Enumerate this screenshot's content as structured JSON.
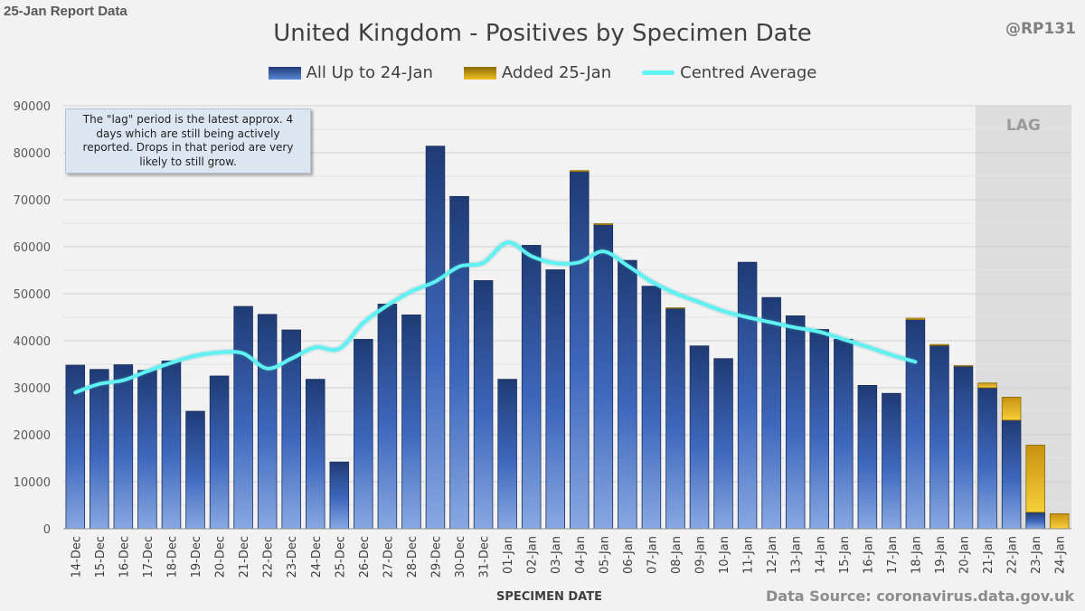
{
  "header": {
    "report_label": "25-Jan Report Data",
    "author_handle": "@RP131"
  },
  "chart_data": {
    "type": "bar",
    "title": "United Kingdom - Positives by Specimen Date",
    "xlabel": "SPECIMEN DATE",
    "ylabel": "",
    "ylim": [
      0,
      90000
    ],
    "yticks": [
      0,
      10000,
      20000,
      30000,
      40000,
      50000,
      60000,
      70000,
      80000,
      90000
    ],
    "stacked": true,
    "grid": true,
    "legend_position": "top",
    "categories": [
      "14-Dec",
      "15-Dec",
      "16-Dec",
      "17-Dec",
      "18-Dec",
      "19-Dec",
      "20-Dec",
      "21-Dec",
      "22-Dec",
      "23-Dec",
      "24-Dec",
      "25-Dec",
      "26-Dec",
      "27-Dec",
      "28-Dec",
      "29-Dec",
      "30-Dec",
      "31-Dec",
      "01-Jan",
      "02-Jan",
      "03-Jan",
      "04-Jan",
      "05-Jan",
      "06-Jan",
      "07-Jan",
      "08-Jan",
      "09-Jan",
      "10-Jan",
      "11-Jan",
      "12-Jan",
      "13-Jan",
      "14-Jan",
      "15-Jan",
      "16-Jan",
      "17-Jan",
      "18-Jan",
      "19-Jan",
      "20-Jan",
      "21-Jan",
      "22-Jan",
      "23-Jan",
      "24-Jan"
    ],
    "series": [
      {
        "name": "All Up to 24-Jan",
        "kind": "bar",
        "color": "#2f55a4",
        "values": [
          34800,
          33900,
          34900,
          33700,
          35700,
          25000,
          32500,
          47300,
          45600,
          42300,
          31800,
          14200,
          40300,
          47800,
          45500,
          81400,
          70700,
          52800,
          31800,
          60300,
          55100,
          76000,
          64700,
          57100,
          51600,
          46900,
          38900,
          36200,
          56700,
          49200,
          45300,
          42400,
          40300,
          30500,
          28800,
          44500,
          39000,
          34600,
          30000,
          23100,
          3500,
          0
        ]
      },
      {
        "name": "Added 25-Jan",
        "kind": "bar",
        "color": "#d9a520",
        "values": [
          0,
          0,
          0,
          0,
          0,
          0,
          0,
          0,
          0,
          0,
          0,
          0,
          0,
          0,
          0,
          0,
          0,
          0,
          0,
          0,
          0,
          200,
          200,
          0,
          0,
          100,
          0,
          0,
          0,
          0,
          0,
          0,
          0,
          0,
          0,
          300,
          200,
          100,
          1000,
          4900,
          14300,
          3200
        ]
      },
      {
        "name": "Centred Average",
        "kind": "line",
        "color": "#5ef2f2",
        "values": [
          29000,
          30800,
          31600,
          33500,
          35300,
          36800,
          37500,
          37300,
          34100,
          36200,
          38600,
          38300,
          43800,
          47500,
          50500,
          52600,
          55800,
          56600,
          60900,
          58000,
          56500,
          56700,
          59000,
          56000,
          52600,
          50100,
          48200,
          46300,
          45000,
          43900,
          42800,
          41900,
          40300,
          38700,
          37000,
          35500,
          null,
          null,
          null,
          null,
          null,
          null
        ]
      }
    ],
    "annotations": {
      "lag_label": "LAG",
      "lag_categories": [
        "21-Jan",
        "22-Jan",
        "23-Jan",
        "24-Jan"
      ],
      "note": "The \"lag\" period is the latest approx. 4 days which are still being actively reported.  Drops in that period are very likely to still grow."
    }
  },
  "footer": {
    "source": "Data Source: coronavirus.data.gov.uk"
  }
}
